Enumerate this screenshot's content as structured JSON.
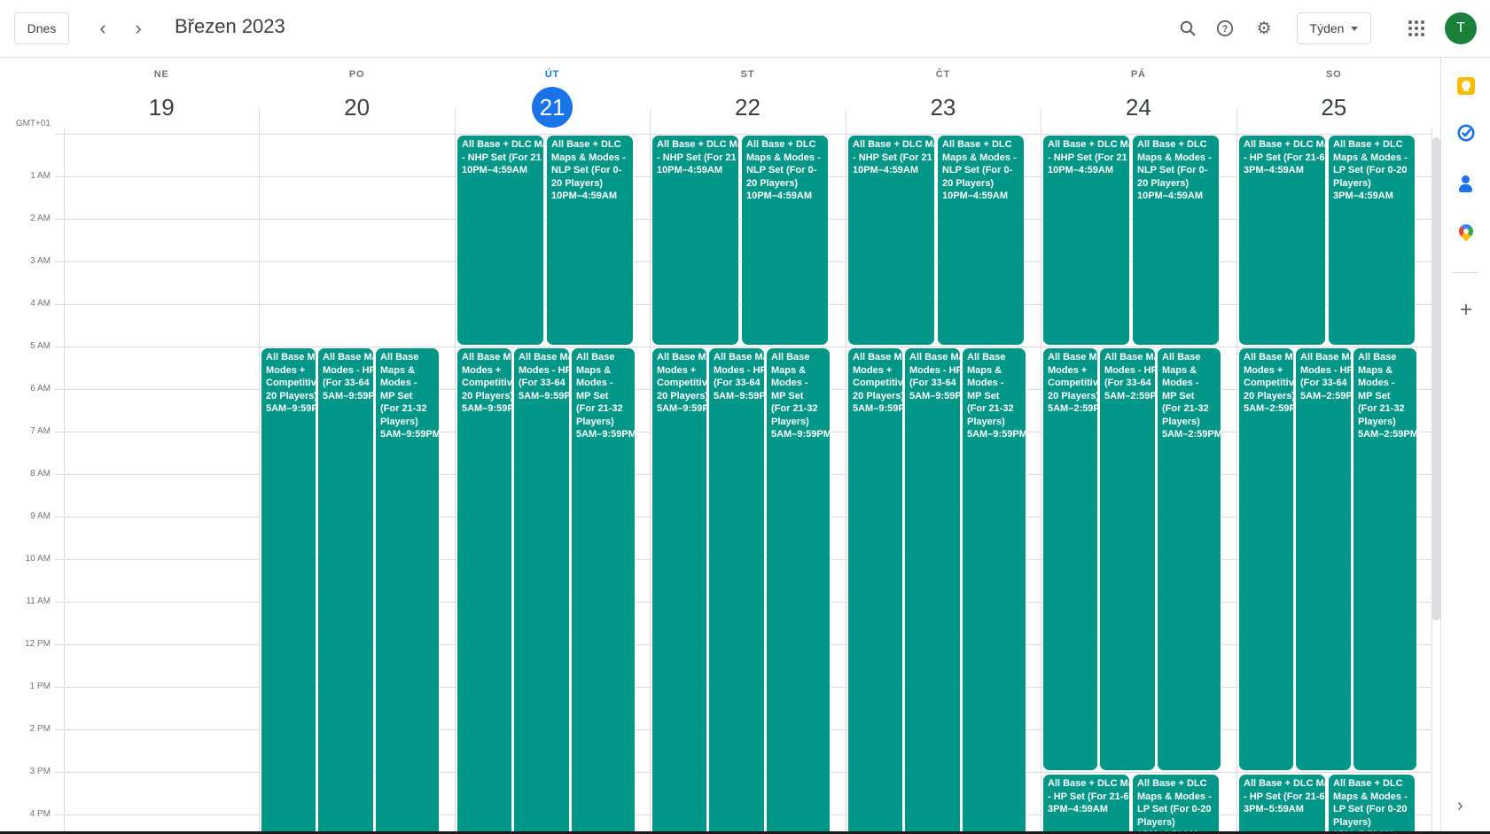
{
  "header": {
    "today_button": "Dnes",
    "title": "Březen 2023",
    "view_button": "Týden",
    "avatar_letter": "T"
  },
  "colors": {
    "accent": "#1a73e8",
    "event": "#009688",
    "avatar_green": "#188038",
    "keep_yellow": "#fbbc04",
    "icon_gray": "#5f6368",
    "border_gray": "#dadce0",
    "text_gray": "#70757a",
    "text_dark": "#3c4043"
  },
  "side_panel": {
    "icons": [
      "keep-icon",
      "tasks-icon",
      "contacts-icon",
      "maps-icon",
      "add-icon"
    ],
    "collapse_chevron": "›"
  },
  "calendar": {
    "timezone": "GMT+01",
    "time_labels": [
      "1 AM",
      "2 AM",
      "3 AM",
      "4 AM",
      "5 AM",
      "6 AM",
      "7 AM",
      "8 AM",
      "9 AM",
      "10 AM",
      "11 AM",
      "12 PM",
      "1 PM",
      "2 PM",
      "3 PM",
      "4 PM"
    ],
    "days": [
      {
        "weekday": "NE",
        "date": "19",
        "is_today": false,
        "overnight_events": [],
        "day_events": [],
        "afternoon_events": []
      },
      {
        "weekday": "PO",
        "date": "20",
        "is_today": false,
        "overnight_events": [],
        "day_events": [
          {
            "lines": [
              "All Base Ma",
              "Modes +",
              "Competitiv",
              "20 Players)",
              "5AM–9:59P"
            ]
          },
          {
            "lines": [
              "All Base Ma",
              "Modes - HP",
              "(For 33-64",
              "5AM–9:59P"
            ]
          },
          {
            "lines": [
              "All Base",
              "Maps &",
              "Modes -",
              "MP Set",
              "(For 21-32",
              "Players)",
              "5AM–9:59PM"
            ]
          }
        ],
        "afternoon_events": []
      },
      {
        "weekday": "ÚT",
        "date": "21",
        "is_today": true,
        "overnight_events": [
          {
            "lines": [
              "All Base + DLC Ma",
              "- NHP Set (For 21",
              "10PM–4:59AM"
            ]
          },
          {
            "lines": [
              "All Base + DLC",
              "Maps & Modes -",
              "NLP Set (For 0-",
              "20 Players)",
              "10PM–4:59AM"
            ]
          }
        ],
        "day_events": [
          {
            "lines": [
              "All Base Ma",
              "Modes +",
              "Competitiv",
              "20 Players)",
              "5AM–9:59P"
            ]
          },
          {
            "lines": [
              "All Base Ma",
              "Modes - HP",
              "(For 33-64",
              "5AM–9:59P"
            ]
          },
          {
            "lines": [
              "All Base",
              "Maps &",
              "Modes -",
              "MP Set",
              "(For 21-32",
              "Players)",
              "5AM–9:59PM"
            ]
          }
        ],
        "afternoon_events": []
      },
      {
        "weekday": "ST",
        "date": "22",
        "is_today": false,
        "overnight_events": [
          {
            "lines": [
              "All Base + DLC Ma",
              "- NHP Set (For 21",
              "10PM–4:59AM"
            ]
          },
          {
            "lines": [
              "All Base + DLC",
              "Maps & Modes -",
              "NLP Set (For 0-",
              "20 Players)",
              "10PM–4:59AM"
            ]
          }
        ],
        "day_events": [
          {
            "lines": [
              "All Base Ma",
              "Modes +",
              "Competitiv",
              "20 Players)",
              "5AM–9:59P"
            ]
          },
          {
            "lines": [
              "All Base Ma",
              "Modes - HP",
              "(For 33-64",
              "5AM–9:59P"
            ]
          },
          {
            "lines": [
              "All Base",
              "Maps &",
              "Modes -",
              "MP Set",
              "(For 21-32",
              "Players)",
              "5AM–9:59PM"
            ]
          }
        ],
        "afternoon_events": []
      },
      {
        "weekday": "ČT",
        "date": "23",
        "is_today": false,
        "overnight_events": [
          {
            "lines": [
              "All Base + DLC Ma",
              "- NHP Set (For 21",
              "10PM–4:59AM"
            ]
          },
          {
            "lines": [
              "All Base + DLC",
              "Maps & Modes -",
              "NLP Set (For 0-",
              "20 Players)",
              "10PM–4:59AM"
            ]
          }
        ],
        "day_events": [
          {
            "lines": [
              "All Base Ma",
              "Modes +",
              "Competitiv",
              "20 Players)",
              "5AM–9:59P"
            ]
          },
          {
            "lines": [
              "All Base Ma",
              "Modes - HP",
              "(For 33-64",
              "5AM–9:59P"
            ]
          },
          {
            "lines": [
              "All Base",
              "Maps &",
              "Modes -",
              "MP Set",
              "(For 21-32",
              "Players)",
              "5AM–9:59PM"
            ]
          }
        ],
        "afternoon_events": []
      },
      {
        "weekday": "PÁ",
        "date": "24",
        "is_today": false,
        "overnight_events": [
          {
            "lines": [
              "All Base + DLC Ma",
              "- NHP Set (For 21",
              "10PM–4:59AM"
            ]
          },
          {
            "lines": [
              "All Base + DLC",
              "Maps & Modes -",
              "NLP Set (For 0-",
              "20 Players)",
              "10PM–4:59AM"
            ]
          }
        ],
        "day_events": [
          {
            "lines": [
              "All Base Ma",
              "Modes +",
              "Competitiv",
              "20 Players)",
              "5AM–2:59P"
            ]
          },
          {
            "lines": [
              "All Base Ma",
              "Modes - HP",
              "(For 33-64",
              "5AM–2:59P"
            ]
          },
          {
            "lines": [
              "All Base",
              "Maps &",
              "Modes -",
              "MP Set",
              "(For 21-32",
              "Players)",
              "5AM–2:59PM"
            ]
          }
        ],
        "afternoon_events": [
          {
            "lines": [
              "All Base + DLC Ma",
              "- HP Set (For 21-6",
              "3PM–4:59AM"
            ]
          },
          {
            "lines": [
              "All Base + DLC",
              "Maps & Modes -",
              "LP Set (For 0-20",
              "Players)",
              "3PM–4:59AM"
            ]
          }
        ]
      },
      {
        "weekday": "SO",
        "date": "25",
        "is_today": false,
        "overnight_events": [
          {
            "lines": [
              "All Base + DLC Ma",
              "- HP Set (For 21-6",
              "3PM–4:59AM"
            ]
          },
          {
            "lines": [
              "All Base + DLC",
              "Maps & Modes -",
              "LP Set (For 0-20",
              "Players)",
              "3PM–4:59AM"
            ]
          }
        ],
        "day_events": [
          {
            "lines": [
              "All Base Ma",
              "Modes +",
              "Competitiv",
              "20 Players)",
              "5AM–2:59P"
            ]
          },
          {
            "lines": [
              "All Base Ma",
              "Modes - HP",
              "(For 33-64",
              "5AM–2:59P"
            ]
          },
          {
            "lines": [
              "All Base",
              "Maps &",
              "Modes -",
              "MP Set",
              "(For 21-32",
              "Players)",
              "5AM–2:59PM"
            ]
          }
        ],
        "afternoon_events": [
          {
            "lines": [
              "All Base + DLC Ma",
              "- HP Set (For 21-6",
              "3PM–5:59AM"
            ]
          },
          {
            "lines": [
              "All Base + DLC",
              "Maps & Modes -",
              "LP Set (For 0-20",
              "Players)",
              "3PM–5:59AM"
            ]
          }
        ]
      }
    ]
  }
}
